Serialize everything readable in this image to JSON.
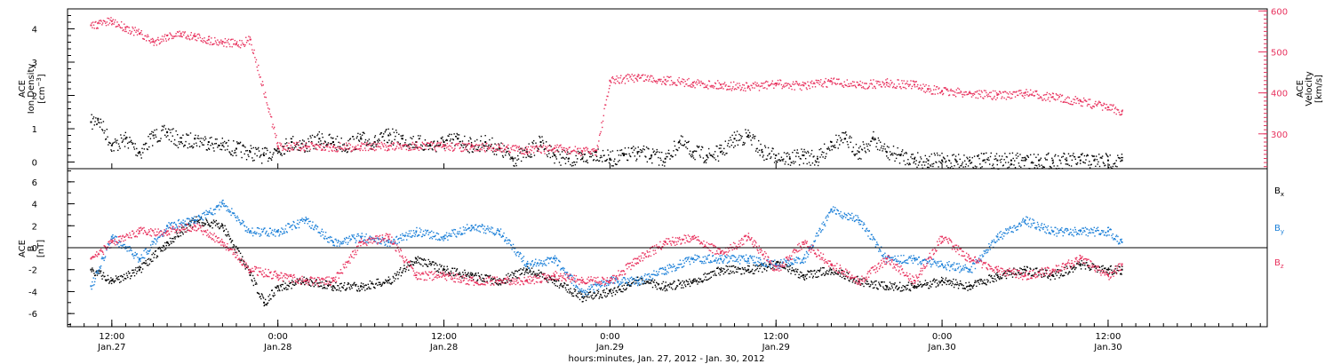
{
  "chart_data": [
    {
      "type": "scatter",
      "panel": "top",
      "ylabel": "ACE Ion Density [cm^-3]",
      "ylabel_lines": [
        "ACE",
        "Ion Density"
      ],
      "ylabel_unit_base": "[cm",
      "ylabel_unit_exp": "−3",
      "ylabel_unit_close": "]",
      "ylim": [
        -0.2,
        4.6
      ],
      "yticks": [
        0,
        1,
        2,
        3,
        4
      ],
      "y2label": "ACE Velocity [km/s]",
      "y2label_lines": [
        "ACE",
        "Velocity"
      ],
      "y2label_unit": "[km/s]",
      "y2lim": [
        215,
        605
      ],
      "y2ticks": [
        300,
        400,
        500,
        600
      ],
      "grid": false,
      "series": [
        {
          "name": "",
          "axis": "left",
          "color": "#000000",
          "x": [
            10.5,
            11,
            12,
            13,
            14,
            15,
            16,
            17,
            18,
            19,
            20,
            21,
            22,
            23,
            24,
            25,
            26,
            27,
            28,
            29,
            30,
            31,
            32,
            33,
            34,
            35,
            36,
            37,
            38,
            39,
            40,
            41,
            42,
            43,
            44,
            45,
            46,
            47,
            48,
            49,
            50,
            51,
            52,
            53,
            54,
            55,
            56,
            57,
            58,
            59,
            60,
            61,
            62,
            63,
            64,
            65,
            66,
            67,
            68,
            69,
            70,
            71,
            72,
            73,
            74,
            75,
            76,
            77,
            78,
            79,
            80,
            81,
            82,
            83,
            84,
            85
          ],
          "y": [
            1.2,
            1.3,
            0.5,
            0.7,
            0.3,
            0.8,
            0.9,
            0.6,
            0.7,
            0.6,
            0.5,
            0.4,
            0.3,
            0.2,
            0.4,
            0.6,
            0.5,
            0.7,
            0.6,
            0.5,
            0.7,
            0.6,
            0.8,
            0.7,
            0.6,
            0.5,
            0.6,
            0.7,
            0.5,
            0.6,
            0.4,
            0.1,
            0.3,
            0.6,
            0.2,
            0.1,
            0.1,
            0.3,
            0.1,
            0.2,
            0.3,
            0.2,
            0.1,
            0.6,
            0.3,
            0.2,
            0.3,
            0.7,
            0.8,
            0.3,
            0.2,
            0.1,
            0.2,
            0.1,
            0.6,
            0.7,
            0.3,
            0.7,
            0.3,
            0.2,
            0.1,
            0.05,
            0.05,
            0.05,
            0.05,
            0.05,
            0.05,
            0.05,
            0.05,
            0.05,
            0.05,
            0.05,
            0.05,
            0.05,
            0.05,
            0.05
          ]
        },
        {
          "name": "",
          "axis": "right",
          "color": "#e8325e",
          "x": [
            10.5,
            11,
            12,
            13,
            14,
            15,
            16,
            17,
            18,
            19,
            20,
            21,
            22,
            24,
            26,
            28,
            30,
            32,
            34,
            36,
            38,
            40,
            42,
            44,
            46,
            47,
            48,
            50,
            52,
            54,
            56,
            58,
            60,
            62,
            64,
            66,
            68,
            70,
            71,
            72,
            74,
            76,
            78,
            80,
            82,
            84,
            85
          ],
          "y": [
            565,
            570,
            575,
            560,
            545,
            525,
            540,
            545,
            538,
            530,
            525,
            520,
            530,
            270,
            270,
            268,
            270,
            270,
            272,
            270,
            268,
            268,
            262,
            265,
            258,
            260,
            430,
            440,
            432,
            425,
            420,
            415,
            423,
            418,
            428,
            420,
            425,
            420,
            410,
            405,
            400,
            395,
            400,
            390,
            380,
            365,
            355
          ]
        }
      ]
    },
    {
      "type": "scatter",
      "panel": "bottom",
      "ylabel": "ACE B [nT]",
      "ylabel_lines": [
        "ACE",
        "B"
      ],
      "ylabel_unit": "[nT]",
      "ylim": [
        -7.2,
        7.2
      ],
      "yticks": [
        -6,
        -4,
        -2,
        0,
        2,
        4,
        6
      ],
      "zero_line": true,
      "grid": false,
      "series": [
        {
          "name": "B",
          "sub": "x",
          "color": "#000000",
          "x": [
            10.5,
            12,
            14,
            16,
            18,
            20,
            22,
            23,
            24,
            26,
            28,
            30,
            32,
            34,
            36,
            38,
            40,
            42,
            44,
            46,
            48,
            50,
            52,
            54,
            56,
            58,
            60,
            62,
            64,
            66,
            68,
            70,
            72,
            74,
            76,
            78,
            80,
            82,
            84,
            85
          ],
          "y": [
            -2.0,
            -3.0,
            -2.0,
            0.5,
            2.5,
            2.0,
            -2.5,
            -5.0,
            -3.5,
            -3.0,
            -3.5,
            -3.5,
            -3.0,
            -1.0,
            -2.0,
            -2.5,
            -3.0,
            -2.0,
            -3.0,
            -4.5,
            -4.0,
            -3.0,
            -3.5,
            -3.0,
            -2.0,
            -2.0,
            -1.5,
            -2.5,
            -2.0,
            -3.0,
            -3.5,
            -3.5,
            -3.0,
            -3.5,
            -2.5,
            -2.0,
            -2.5,
            -1.5,
            -2.0,
            -2.0
          ]
        },
        {
          "name": "B",
          "sub": "y",
          "color": "#1a7fd8",
          "x": [
            10.5,
            12,
            14,
            16,
            18,
            20,
            22,
            24,
            26,
            28,
            30,
            32,
            34,
            36,
            38,
            40,
            42,
            44,
            46,
            48,
            50,
            52,
            54,
            56,
            58,
            60,
            62,
            64,
            66,
            68,
            70,
            72,
            74,
            76,
            78,
            80,
            82,
            84,
            85
          ],
          "y": [
            -3.5,
            1.0,
            -1.0,
            2.0,
            2.5,
            4.0,
            1.5,
            1.5,
            2.5,
            0.5,
            1.0,
            0.5,
            1.5,
            1.0,
            2.0,
            1.5,
            -1.5,
            -1.0,
            -4.0,
            -3.0,
            -3.0,
            -2.0,
            -1.0,
            -1.0,
            -1.0,
            -1.5,
            -1.0,
            3.5,
            2.5,
            -1.0,
            -1.0,
            -1.5,
            -2.0,
            1.0,
            2.5,
            1.5,
            1.5,
            1.5,
            0.5
          ]
        },
        {
          "name": "B",
          "sub": "z",
          "color": "#e8325e",
          "x": [
            10.5,
            12,
            14,
            16,
            18,
            20,
            22,
            24,
            26,
            28,
            30,
            32,
            34,
            36,
            38,
            40,
            42,
            44,
            46,
            48,
            50,
            52,
            54,
            56,
            58,
            60,
            62,
            64,
            66,
            68,
            70,
            72,
            74,
            76,
            78,
            80,
            82,
            84,
            85
          ],
          "y": [
            -1.0,
            0.5,
            1.5,
            1.5,
            2.0,
            0.5,
            -2.0,
            -2.5,
            -3.0,
            -3.0,
            0.5,
            1.0,
            -2.5,
            -2.5,
            -3.0,
            -3.0,
            -3.0,
            -2.5,
            -3.0,
            -3.0,
            -1.0,
            0.5,
            1.0,
            -0.5,
            1.0,
            -2.0,
            0.5,
            -1.5,
            -3.0,
            -1.0,
            -3.0,
            1.0,
            -1.0,
            -2.0,
            -2.5,
            -2.0,
            -1.0,
            -2.5,
            -1.5
          ]
        }
      ]
    }
  ],
  "x_axis": {
    "range_hours": [
      8.8,
      95.5
    ],
    "major_ticks": [
      {
        "hour": 12,
        "time": "12:00",
        "date": "Jan.27"
      },
      {
        "hour": 24,
        "time": "0:00",
        "date": "Jan.28"
      },
      {
        "hour": 36,
        "time": "12:00",
        "date": "Jan.28"
      },
      {
        "hour": 48,
        "time": "0:00",
        "date": "Jan.29"
      },
      {
        "hour": 60,
        "time": "12:00",
        "date": "Jan.29"
      },
      {
        "hour": 72,
        "time": "0:00",
        "date": "Jan.30"
      },
      {
        "hour": 84,
        "time": "12:00",
        "date": "Jan.30"
      }
    ],
    "xlabel": "hours:minutes, Jan. 27, 2012 - Jan. 30, 2012"
  }
}
